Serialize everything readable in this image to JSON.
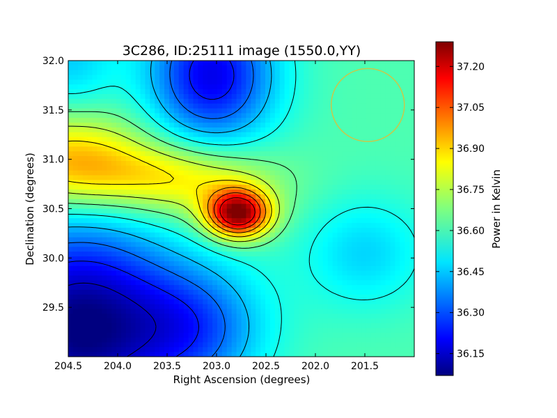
{
  "chart_data": {
    "type": "heatmap",
    "title": "3C286, ID:25111 image (1550.0,YY)",
    "xlabel": "Right Ascension (degrees)",
    "ylabel": "Declination (degrees)",
    "xlim": [
      204.5,
      201.0
    ],
    "ylim": [
      29.0,
      32.0
    ],
    "xticks": [
      "204.5",
      "204.0",
      "203.5",
      "203.0",
      "202.5",
      "202.0",
      "201.5"
    ],
    "yticks": [
      "29.5",
      "30.0",
      "30.5",
      "31.0",
      "31.5",
      "32.0"
    ],
    "colorbar": {
      "label": "Power in Kelvin",
      "range": [
        36.07,
        37.29
      ],
      "ticks": [
        "36.15",
        "36.30",
        "36.45",
        "36.60",
        "36.75",
        "36.90",
        "37.05",
        "37.20"
      ],
      "colormap": "jet"
    },
    "features": [
      {
        "kind": "peak",
        "ra": 202.78,
        "dec": 30.45,
        "value": 37.27
      },
      {
        "kind": "warm-region",
        "ra": 204.45,
        "dec": 31.0,
        "value": 36.92
      },
      {
        "kind": "cold-region",
        "ra": 204.4,
        "dec": 29.3,
        "value": 36.08
      },
      {
        "kind": "cold-region",
        "ra": 203.05,
        "dec": 31.85,
        "value": 36.22
      },
      {
        "kind": "cool-region",
        "ra": 201.5,
        "dec": 30.05,
        "value": 36.48
      }
    ],
    "beam_circle": {
      "ra": 201.47,
      "dec": 31.55,
      "radius_deg": 0.37,
      "color": "#c8c84a"
    },
    "contours": true,
    "grid": false
  }
}
